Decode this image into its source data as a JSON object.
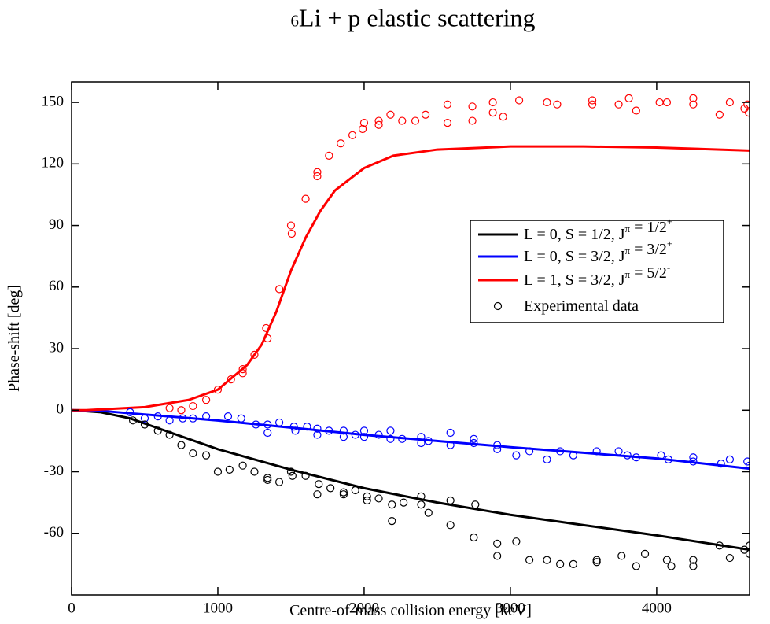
{
  "chart_data": {
    "type": "line",
    "title": "6Li + p elastic scattering",
    "x_label": "Centre-of-mass collision energy [keV]",
    "y_label": "Phase-shift [deg]",
    "xlim": [
      0,
      4635
    ],
    "ylim": [
      -90,
      160
    ],
    "xticks": [
      0,
      1000,
      2000,
      3000,
      4000
    ],
    "yticks": [
      -60,
      -30,
      0,
      30,
      60,
      90,
      120,
      150
    ],
    "series": [
      {
        "name": "L = 0, S = 1/2, Jπ = 1/2+",
        "color": "#000000",
        "x": [
          0,
          200,
          400,
          600,
          800,
          1000,
          1500,
          2000,
          2500,
          3000,
          3500,
          4000,
          4635
        ],
        "values": [
          0,
          -1,
          -4,
          -9,
          -14,
          -19,
          -29,
          -38,
          -45,
          -51,
          -56,
          -61,
          -68
        ]
      },
      {
        "name": "L = 0, S = 3/2, Jπ = 3/2+",
        "color": "#0000ff",
        "x": [
          0,
          200,
          400,
          1000,
          2000,
          3000,
          4000,
          4635
        ],
        "values": [
          0,
          -0.3,
          -1.5,
          -5,
          -12,
          -18,
          -23.5,
          -28.5
        ]
      },
      {
        "name": "L = 1, S = 3/2, Jπ = 5/2-",
        "color": "#ff0000",
        "x": [
          0,
          100,
          500,
          800,
          1000,
          1200,
          1300,
          1400,
          1450,
          1500,
          1600,
          1700,
          1800,
          2000,
          2200,
          2500,
          3000,
          3500,
          4000,
          4635
        ],
        "values": [
          0,
          0,
          1.5,
          5,
          10,
          22,
          32,
          48,
          58,
          68,
          84,
          97,
          107,
          118,
          124,
          127,
          128.5,
          128.5,
          128,
          126.5
        ]
      }
    ],
    "experimental": {
      "name": "Experimental data",
      "color": "#000000",
      "sets": [
        {
          "color": "#ff0000",
          "x": [
            670,
            750,
            830,
            920,
            1000,
            1090,
            1170,
            1170,
            1250,
            1330,
            1340,
            1420,
            1500,
            1505,
            1600,
            1680,
            1680,
            1760,
            1840,
            1920,
            1990,
            2000,
            2100,
            2100,
            2180,
            2260,
            2350,
            2420,
            2570,
            2570,
            2740,
            2740,
            2880,
            2880,
            2950,
            3060,
            3250,
            3320,
            3560,
            3560,
            3740,
            3810,
            3860,
            4020,
            4070,
            4250,
            4250,
            4430,
            4500,
            4600,
            4620,
            4630
          ],
          "values": [
            1,
            0,
            2,
            5,
            10,
            15,
            20,
            18,
            27,
            40,
            35,
            59,
            90,
            86,
            103,
            116,
            114,
            124,
            130,
            134,
            137,
            140,
            141,
            139,
            144,
            141,
            141,
            144,
            149,
            140,
            148,
            141,
            150,
            145,
            143,
            151,
            150,
            149,
            151,
            149,
            149,
            152,
            146,
            150,
            150,
            152,
            149,
            144,
            150,
            147,
            149,
            145
          ]
        },
        {
          "color": "#0000ff",
          "x": [
            400,
            500,
            590,
            670,
            760,
            830,
            920,
            1070,
            1160,
            1260,
            1340,
            1340,
            1420,
            1520,
            1530,
            1610,
            1680,
            1680,
            1760,
            1860,
            1860,
            1940,
            2000,
            2000,
            2100,
            2180,
            2180,
            2260,
            2390,
            2390,
            2440,
            2590,
            2590,
            2750,
            2750,
            2910,
            2910,
            3040,
            3130,
            3250,
            3340,
            3430,
            3590,
            3740,
            3800,
            3860,
            4030,
            4080,
            4250,
            4250,
            4440,
            4500,
            4620,
            4635
          ],
          "values": [
            -1,
            -4,
            -3,
            -5,
            -4,
            -4,
            -3,
            -3,
            -4,
            -7,
            -7,
            -11,
            -6,
            -8,
            -10,
            -8,
            -9,
            -12,
            -10,
            -10,
            -13,
            -12,
            -10,
            -13,
            -12,
            -10,
            -14,
            -14,
            -13,
            -16,
            -15,
            -11,
            -17,
            -14,
            -16,
            -17,
            -19,
            -22,
            -20,
            -24,
            -20,
            -22,
            -20,
            -20,
            -22,
            -23,
            -22,
            -24,
            -23,
            -25,
            -26,
            -24,
            -25,
            -27
          ]
        },
        {
          "color": "#000000",
          "x": [
            420,
            500,
            590,
            670,
            750,
            830,
            920,
            1000,
            1080,
            1170,
            1250,
            1340,
            1340,
            1420,
            1500,
            1510,
            1600,
            1680,
            1690,
            1770,
            1860,
            1860,
            1940,
            2020,
            2020,
            2100,
            2190,
            2190,
            2270,
            2390,
            2390,
            2440,
            2590,
            2590,
            2750,
            2760,
            2910,
            2910,
            3040,
            3130,
            3250,
            3340,
            3430,
            3590,
            3590,
            3760,
            3860,
            3920,
            4070,
            4100,
            4250,
            4250,
            4430,
            4500,
            4600,
            4635,
            4635
          ],
          "values": [
            -5,
            -7,
            -10,
            -12,
            -17,
            -21,
            -22,
            -30,
            -29,
            -27,
            -30,
            -33,
            -34,
            -35,
            -30,
            -32,
            -32,
            -41,
            -36,
            -38,
            -40,
            -41,
            -39,
            -42,
            -44,
            -43,
            -46,
            -54,
            -45,
            -42,
            -46,
            -50,
            -44,
            -56,
            -62,
            -46,
            -65,
            -71,
            -64,
            -73,
            -73,
            -75,
            -75,
            -73,
            -74,
            -71,
            -76,
            -70,
            -73,
            -76,
            -73,
            -76,
            -66,
            -72,
            -68,
            -70,
            -66
          ]
        }
      ]
    }
  }
}
